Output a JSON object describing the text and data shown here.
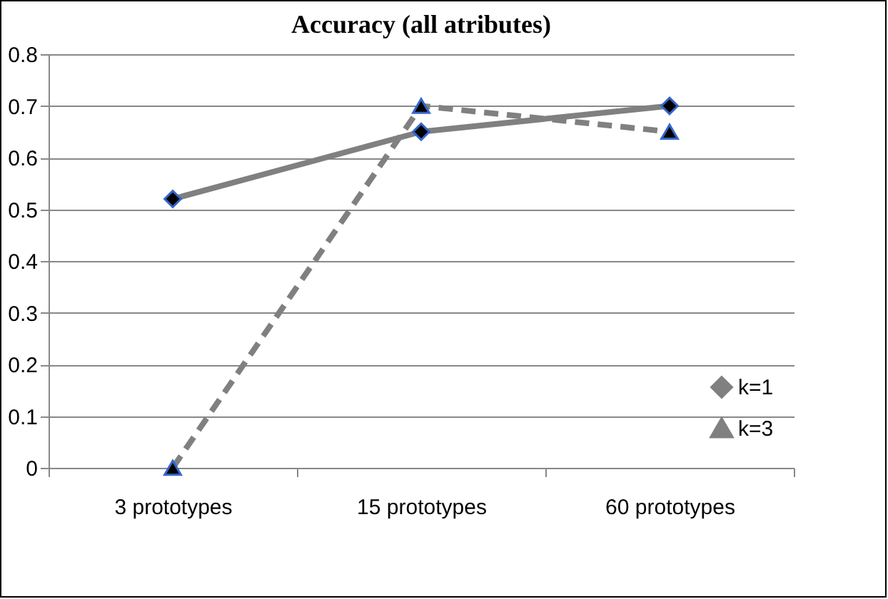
{
  "chart_data": {
    "type": "line",
    "title": "Accuracy (all atributes)",
    "categories": [
      "3 prototypes",
      "15 prototypes",
      "60 prototypes"
    ],
    "series": [
      {
        "name": "k=1",
        "color": "#808080",
        "values": [
          0.52,
          0.65,
          0.7
        ],
        "marker": "diamond",
        "line_style": "solid"
      },
      {
        "name": "k=3",
        "color": "#808080",
        "values": [
          0,
          0.7,
          0.65
        ],
        "marker": "triangle",
        "line_style": "dashed"
      }
    ],
    "ylim": [
      0,
      0.8
    ],
    "yticks": [
      0,
      0.1,
      0.2,
      0.3,
      0.4,
      0.5,
      0.6,
      0.7,
      0.8
    ],
    "grid": "y",
    "legend": "bottom right"
  }
}
